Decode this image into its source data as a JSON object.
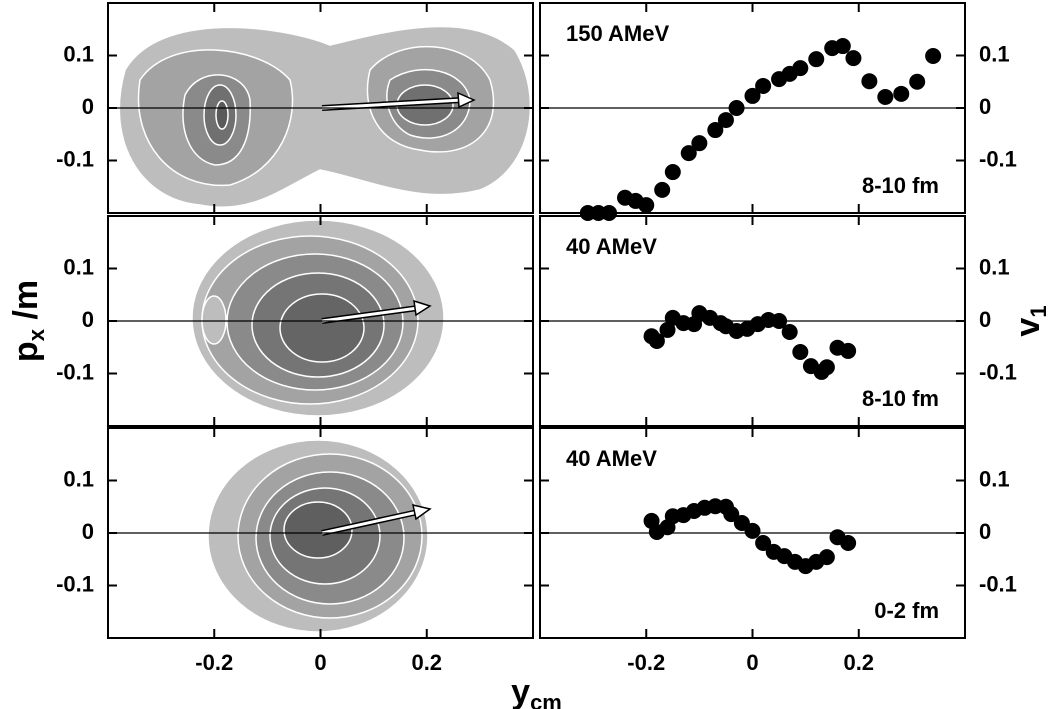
{
  "chart_data": [
    {
      "type": "contour",
      "xlim": [
        -0.4,
        0.4
      ],
      "ylim": [
        -0.2,
        0.2
      ],
      "xticks": [
        -0.2,
        0,
        0.2
      ],
      "yticks": [
        0.1,
        0,
        -0.1
      ]
    },
    {
      "type": "scatter",
      "label": "150 AMeV",
      "label2": "8-10 fm",
      "color": "#000000",
      "xlim": [
        -0.4,
        0.4
      ],
      "ylim": [
        -0.2,
        0.2
      ],
      "xticks": [
        -0.2,
        0,
        0.2
      ],
      "yticks": [
        0.1,
        0,
        -0.1
      ],
      "x": [
        -0.31,
        -0.29,
        -0.27,
        -0.24,
        -0.22,
        -0.2,
        -0.17,
        -0.15,
        -0.12,
        -0.1,
        -0.07,
        -0.05,
        -0.03,
        0,
        0.02,
        0.05,
        0.07,
        0.09,
        0.12,
        0.15,
        0.17,
        0.19,
        0.22,
        0.25,
        0.28,
        0.31,
        0.34
      ],
      "values": [
        -0.2,
        -0.2,
        -0.2,
        -0.171,
        -0.177,
        -0.185,
        -0.156,
        -0.122,
        -0.086,
        -0.067,
        -0.042,
        -0.023,
        0,
        0.023,
        0.042,
        0.055,
        0.065,
        0.076,
        0.093,
        0.114,
        0.118,
        0.095,
        0.051,
        0.021,
        0.027,
        0.05,
        0.099
      ]
    },
    {
      "type": "contour",
      "ylabel": {
        "main": "p",
        "sub": "x",
        "suffix": " /m"
      },
      "xlim": [
        -0.4,
        0.4
      ],
      "ylim": [
        -0.2,
        0.2
      ],
      "xticks": [
        -0.2,
        0,
        0.2
      ],
      "yticks": [
        0.1,
        0,
        -0.1
      ]
    },
    {
      "type": "scatter",
      "label": "40 AMeV",
      "label2": "8-10 fm",
      "ylabel": {
        "main": "v",
        "sub": "1"
      },
      "color": "#000000",
      "xlim": [
        -0.4,
        0.4
      ],
      "ylim": [
        -0.2,
        0.2
      ],
      "xticks": [
        -0.2,
        0,
        0.2
      ],
      "yticks": [
        0.1,
        0,
        -0.1
      ],
      "x": [
        -0.19,
        -0.18,
        -0.16,
        -0.15,
        -0.13,
        -0.11,
        -0.1,
        -0.08,
        -0.06,
        -0.05,
        -0.03,
        -0.01,
        0.01,
        0.03,
        0.05,
        0.07,
        0.09,
        0.11,
        0.13,
        0.14,
        0.16,
        0.18
      ],
      "values": [
        -0.029,
        -0.038,
        -0.017,
        0.006,
        -0.004,
        -0.006,
        0.015,
        0.006,
        -0.004,
        -0.01,
        -0.019,
        -0.015,
        -0.006,
        0.002,
        0,
        -0.021,
        -0.059,
        -0.086,
        -0.097,
        -0.088,
        -0.051,
        -0.057
      ]
    },
    {
      "type": "contour",
      "xlabel": {
        "main": "y",
        "sub": "cm"
      },
      "xlim": [
        -0.4,
        0.4
      ],
      "ylim": [
        -0.2,
        0.2
      ],
      "xticks": [
        -0.2,
        0,
        0.2
      ],
      "yticks": [
        0.1,
        0,
        -0.1
      ]
    },
    {
      "type": "scatter",
      "label": "40 AMeV",
      "label2": "0-2 fm",
      "color": "#000000",
      "xlim": [
        -0.4,
        0.4
      ],
      "ylim": [
        -0.2,
        0.2
      ],
      "xticks": [
        -0.2,
        0,
        0.2
      ],
      "yticks": [
        0.1,
        0,
        -0.1
      ],
      "x": [
        -0.19,
        -0.18,
        -0.16,
        -0.15,
        -0.13,
        -0.11,
        -0.09,
        -0.07,
        -0.05,
        -0.04,
        -0.02,
        0,
        0.02,
        0.04,
        0.06,
        0.08,
        0.1,
        0.12,
        0.14,
        0.16,
        0.18
      ],
      "values": [
        0.023,
        0.002,
        0.011,
        0.032,
        0.034,
        0.042,
        0.048,
        0.051,
        0.05,
        0.036,
        0.019,
        0.004,
        -0.019,
        -0.036,
        -0.044,
        -0.055,
        -0.063,
        -0.055,
        -0.046,
        -0.008,
        -0.019
      ]
    }
  ]
}
